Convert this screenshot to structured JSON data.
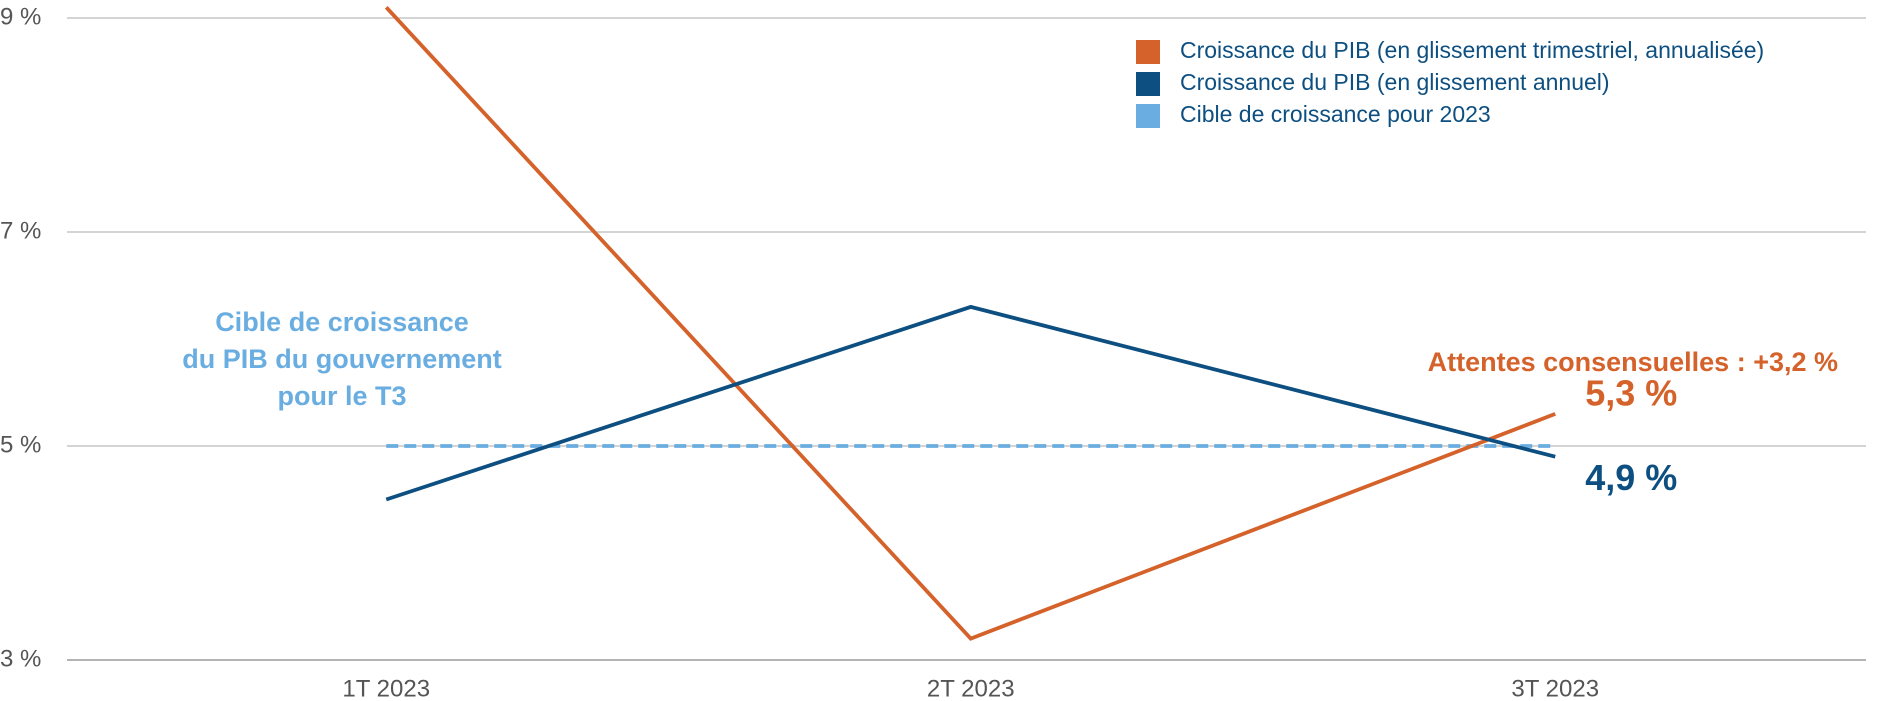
{
  "chart_data": {
    "type": "line",
    "categories": [
      "1T 2023",
      "2T 2023",
      "3T 2023"
    ],
    "series": [
      {
        "name": "Croissance du PIB (en glissement trimestriel, annualisée)",
        "color": "#d4622a",
        "values": [
          9.1,
          3.2,
          5.3
        ],
        "value_labels": [
          null,
          null,
          "5,3 %"
        ]
      },
      {
        "name": "Croissance du PIB (en glissement annuel)",
        "color": "#0d4f80",
        "values": [
          4.5,
          6.3,
          4.9
        ],
        "value_labels": [
          null,
          null,
          "4,9 %"
        ],
        "dash": false
      },
      {
        "name": "Cible de croissance pour 2023",
        "color": "#6aade0",
        "values": [
          5,
          5,
          5
        ],
        "dash": true
      }
    ],
    "ylim": [
      3,
      9
    ],
    "yticks": [
      {
        "value": 3,
        "label": "3 %"
      },
      {
        "value": 5,
        "label": "5 %"
      },
      {
        "value": 7,
        "label": "7 %"
      },
      {
        "value": 9,
        "label": "9 %"
      }
    ],
    "grid": true,
    "legend": "top-right",
    "annotations": [
      {
        "lines": [
          "Cible de croissance",
          "du PIB du gouvernement",
          "pour le T3"
        ],
        "color": "#6aade0"
      },
      {
        "lines": [
          "Attentes consensuelles : +3,2 %"
        ],
        "color": "#d4622a"
      }
    ]
  }
}
